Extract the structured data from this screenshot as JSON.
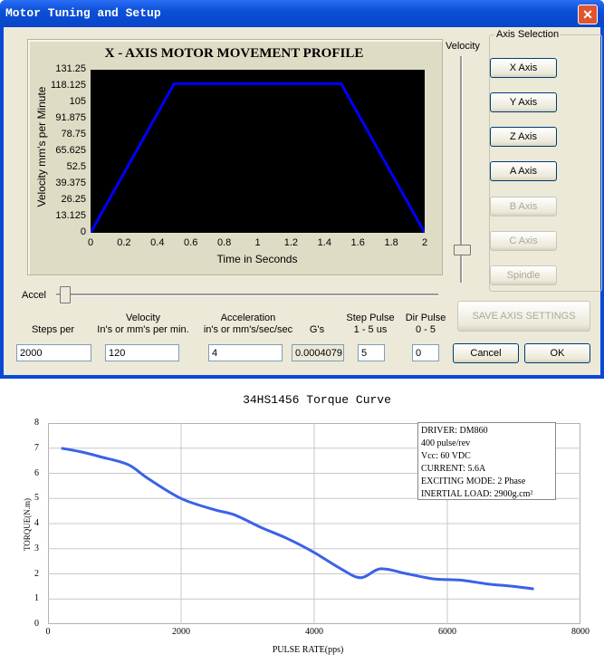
{
  "window": {
    "title": "Motor Tuning and Setup",
    "close_glyph": "✕"
  },
  "profile_plot": {
    "title": "X - AXIS MOTOR MOVEMENT PROFILE",
    "ylabel": "Velocity mm's per Minute",
    "xlabel": "Time in Seconds",
    "y_ticks": [
      "131.25",
      "118.125",
      "105",
      "91.875",
      "78.75",
      "65.625",
      "52.5",
      "39.375",
      "26.25",
      "13.125",
      "0"
    ],
    "x_ticks": [
      "0",
      "0.2",
      "0.4",
      "0.6",
      "0.8",
      "1",
      "1.2",
      "1.4",
      "1.6",
      "1.8",
      "2"
    ],
    "line_color": "#0000ff",
    "background_color": "#000000"
  },
  "chart_data": [
    {
      "type": "line",
      "title": "X - AXIS MOTOR MOVEMENT PROFILE",
      "xlabel": "Time in Seconds",
      "ylabel": "Velocity mm's per Minute",
      "xlim": [
        0,
        2
      ],
      "ylim": [
        0,
        131.25
      ],
      "x": [
        0,
        0.5,
        1.5,
        2
      ],
      "y": [
        0,
        120,
        120,
        0
      ]
    },
    {
      "type": "line",
      "title": "34HS1456 Torque Curve",
      "xlabel": "PULSE  RATE(pps)",
      "ylabel": "TORQUE(N.m)",
      "xlim": [
        0,
        8000
      ],
      "ylim": [
        0,
        8
      ],
      "grid": true,
      "x": [
        200,
        500,
        800,
        1200,
        1500,
        2000,
        2500,
        2800,
        3200,
        3600,
        4000,
        4400,
        4700,
        5000,
        5400,
        5800,
        6200,
        6600,
        7000,
        7300
      ],
      "y": [
        7.0,
        6.85,
        6.65,
        6.35,
        5.8,
        5.0,
        4.55,
        4.35,
        3.85,
        3.4,
        2.85,
        2.2,
        1.85,
        2.2,
        2.0,
        1.8,
        1.75,
        1.6,
        1.5,
        1.4
      ]
    }
  ],
  "velocity_slider": {
    "label": "Velocity"
  },
  "accel_slider": {
    "label": "Accel"
  },
  "axis_selection": {
    "label": "Axis Selection",
    "buttons": [
      "X Axis",
      "Y Axis",
      "Z Axis",
      "A Axis",
      "B Axis",
      "C Axis",
      "Spindle"
    ]
  },
  "fields": {
    "steps_per": {
      "label": "Steps per",
      "value": "2000"
    },
    "velocity": {
      "label1": "Velocity",
      "label2": "In's or mm's per min.",
      "value": "120"
    },
    "acceleration": {
      "label1": "Acceleration",
      "label2": "in's or mm's/sec/sec",
      "value": "4"
    },
    "gs": {
      "label": "G's",
      "value": "0.0004079"
    },
    "step_pulse": {
      "label1": "Step Pulse",
      "label2": "1 - 5 us",
      "value": "5"
    },
    "dir_pulse": {
      "label1": "Dir Pulse",
      "label2": "0 - 5",
      "value": "0"
    }
  },
  "actions": {
    "save": "SAVE AXIS SETTINGS",
    "cancel": "Cancel",
    "ok": "OK"
  },
  "torque_chart": {
    "title": "34HS1456 Torque Curve",
    "ylabel": "TORQUE(N.m)",
    "xlabel": "PULSE  RATE(pps)",
    "y_ticks": [
      "0",
      "1",
      "2",
      "3",
      "4",
      "5",
      "6",
      "7",
      "8"
    ],
    "x_ticks": [
      "0",
      "2000",
      "4000",
      "6000",
      "8000"
    ],
    "line_color": "#3a62e8",
    "legend": [
      "DRIVER: DM860",
      "400  pulse/rev",
      "Vcc: 60 VDC",
      "CURRENT: 5.6A",
      "EXCITING MODE: 2 Phase",
      "INERTIAL LOAD: 2900g.cm²"
    ]
  }
}
